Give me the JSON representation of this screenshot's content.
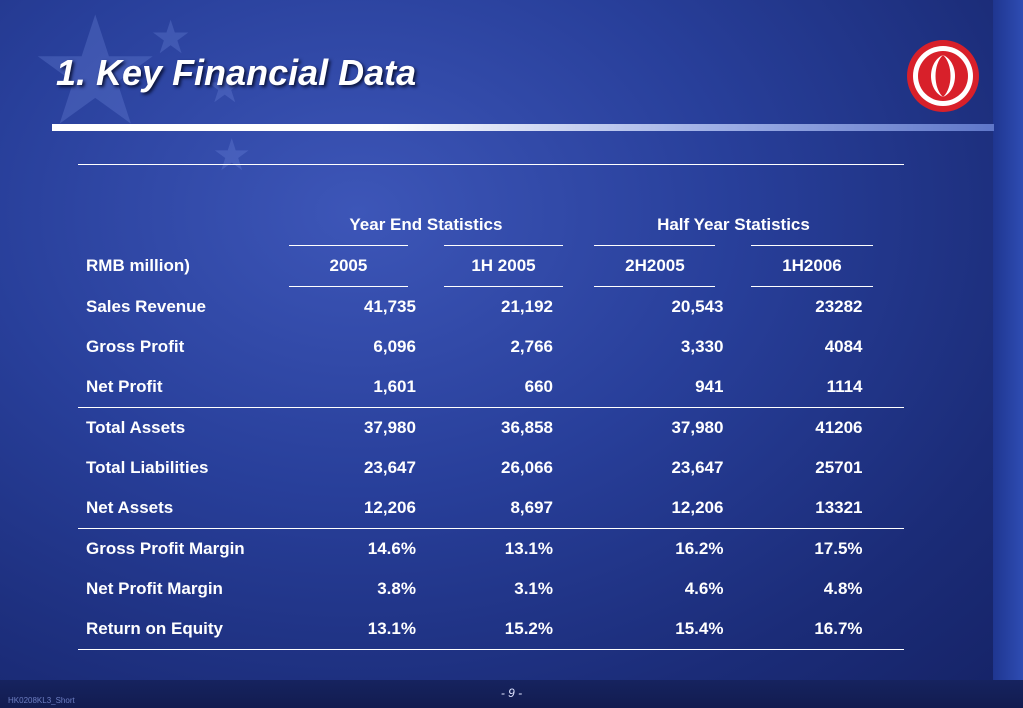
{
  "title": "1.   Key Financial Data",
  "table": {
    "group_headers": [
      "Year End Statistics",
      "Half Year Statistics"
    ],
    "unit_label": "RMB million)",
    "columns": [
      "2005",
      "1H 2005",
      "2H2005",
      "1H2006"
    ],
    "rows": [
      {
        "label": "Sales Revenue",
        "values": [
          "41,735",
          "21,192",
          "20,543",
          "23282"
        ]
      },
      {
        "label": "Gross Profit",
        "values": [
          "6,096",
          "2,766",
          "3,330",
          "4084"
        ]
      },
      {
        "label": "Net Profit",
        "values": [
          "1,601",
          "660",
          "941",
          "1114"
        ]
      },
      {
        "label": "Total Assets",
        "values": [
          "37,980",
          "36,858",
          "37,980",
          "41206"
        ]
      },
      {
        "label": "Total Liabilities",
        "values": [
          "23,647",
          "26,066",
          "23,647",
          "25701"
        ]
      },
      {
        "label": "Net Assets",
        "values": [
          "12,206",
          "8,697",
          "12,206",
          "13321"
        ]
      },
      {
        "label": "Gross Profit Margin",
        "values": [
          "14.6%",
          "13.1%",
          "16.2%",
          "17.5%"
        ]
      },
      {
        "label": "Net Profit Margin",
        "values": [
          "3.8%",
          "3.1%",
          "4.6%",
          "4.8%"
        ]
      },
      {
        "label": "Return on Equity",
        "values": [
          "13.1%",
          "15.2%",
          "15.4%",
          "16.7%"
        ]
      }
    ]
  },
  "footer": {
    "page": "- 9 -",
    "code": "HK0208KL3_Short"
  },
  "colors": {
    "background": "#283f9a",
    "logo_red": "#d8202a",
    "text": "#ffffff"
  },
  "icons": {
    "logo": "dongfeng-logo-icon",
    "stars": "star-icon"
  }
}
